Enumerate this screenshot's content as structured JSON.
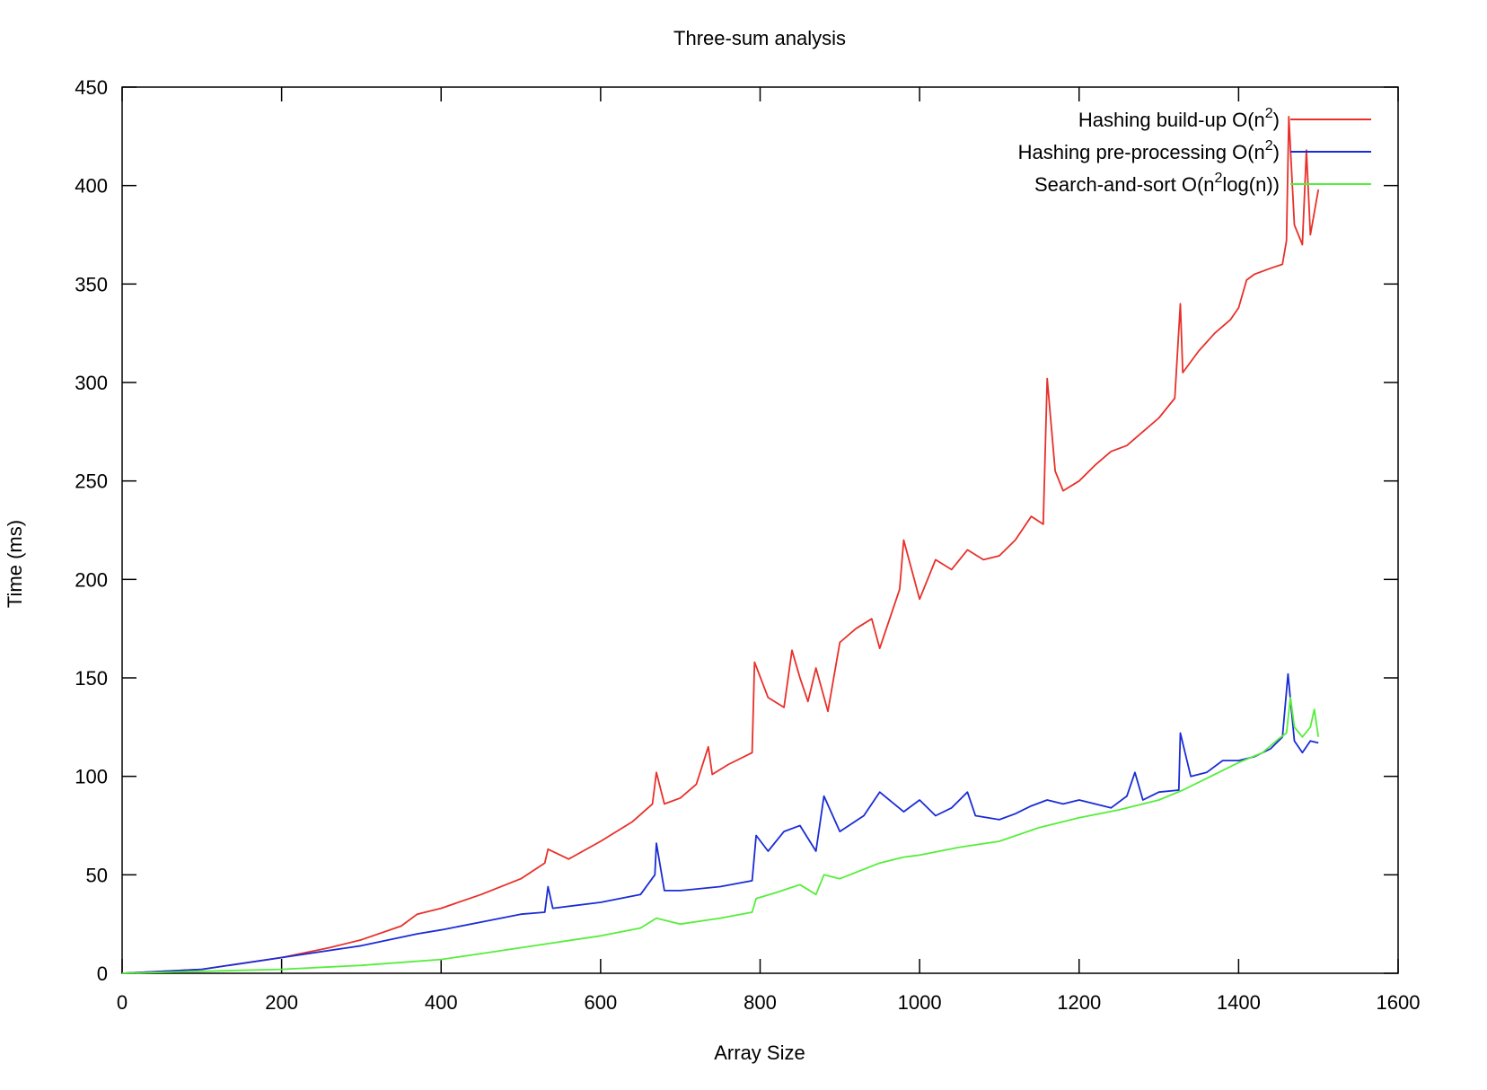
{
  "chart_data": {
    "type": "line",
    "title": "Three-sum analysis",
    "xlabel": "Array Size",
    "ylabel": "Time (ms)",
    "xlim": [
      0,
      1600
    ],
    "ylim": [
      0,
      450
    ],
    "xticks": [
      0,
      200,
      400,
      600,
      800,
      1000,
      1200,
      1400,
      1600
    ],
    "yticks": [
      0,
      50,
      100,
      150,
      200,
      250,
      300,
      350,
      400,
      450
    ],
    "grid": false,
    "legend_position": "top-right",
    "series": [
      {
        "name": "Hashing build-up O(n²)",
        "legend": {
          "base": "Hashing build-up O(n",
          "sup": "2",
          "tail": ")"
        },
        "color": "#e8302a",
        "points": [
          [
            0,
            0
          ],
          [
            100,
            2
          ],
          [
            200,
            8
          ],
          [
            260,
            13
          ],
          [
            300,
            17
          ],
          [
            350,
            24
          ],
          [
            370,
            30
          ],
          [
            400,
            33
          ],
          [
            450,
            40
          ],
          [
            500,
            48
          ],
          [
            530,
            56
          ],
          [
            534,
            63
          ],
          [
            560,
            58
          ],
          [
            600,
            67
          ],
          [
            640,
            77
          ],
          [
            665,
            86
          ],
          [
            670,
            102
          ],
          [
            680,
            86
          ],
          [
            700,
            89
          ],
          [
            720,
            96
          ],
          [
            735,
            115
          ],
          [
            740,
            101
          ],
          [
            760,
            106
          ],
          [
            790,
            112
          ],
          [
            793,
            158
          ],
          [
            810,
            140
          ],
          [
            830,
            135
          ],
          [
            840,
            164
          ],
          [
            850,
            150
          ],
          [
            860,
            138
          ],
          [
            870,
            155
          ],
          [
            885,
            133
          ],
          [
            900,
            168
          ],
          [
            920,
            175
          ],
          [
            940,
            180
          ],
          [
            950,
            165
          ],
          [
            975,
            195
          ],
          [
            980,
            220
          ],
          [
            1000,
            190
          ],
          [
            1020,
            210
          ],
          [
            1040,
            205
          ],
          [
            1060,
            215
          ],
          [
            1080,
            210
          ],
          [
            1100,
            212
          ],
          [
            1120,
            220
          ],
          [
            1140,
            232
          ],
          [
            1155,
            228
          ],
          [
            1160,
            302
          ],
          [
            1170,
            255
          ],
          [
            1180,
            245
          ],
          [
            1200,
            250
          ],
          [
            1220,
            258
          ],
          [
            1240,
            265
          ],
          [
            1260,
            268
          ],
          [
            1280,
            275
          ],
          [
            1300,
            282
          ],
          [
            1320,
            292
          ],
          [
            1327,
            340
          ],
          [
            1330,
            305
          ],
          [
            1350,
            316
          ],
          [
            1370,
            325
          ],
          [
            1390,
            332
          ],
          [
            1400,
            338
          ],
          [
            1410,
            352
          ],
          [
            1420,
            355
          ],
          [
            1440,
            358
          ],
          [
            1455,
            360
          ],
          [
            1460,
            372
          ],
          [
            1463,
            435
          ],
          [
            1470,
            380
          ],
          [
            1480,
            370
          ],
          [
            1485,
            418
          ],
          [
            1490,
            375
          ],
          [
            1500,
            398
          ]
        ]
      },
      {
        "name": "Hashing pre-processing O(n²)",
        "legend": {
          "base": "Hashing pre-processing O(n",
          "sup": "2",
          "tail": ")"
        },
        "color": "#1a2cd6",
        "points": [
          [
            0,
            0
          ],
          [
            100,
            2
          ],
          [
            200,
            8
          ],
          [
            300,
            14
          ],
          [
            370,
            20
          ],
          [
            400,
            22
          ],
          [
            450,
            26
          ],
          [
            500,
            30
          ],
          [
            530,
            31
          ],
          [
            534,
            44
          ],
          [
            540,
            33
          ],
          [
            600,
            36
          ],
          [
            650,
            40
          ],
          [
            668,
            50
          ],
          [
            670,
            66
          ],
          [
            680,
            42
          ],
          [
            700,
            42
          ],
          [
            750,
            44
          ],
          [
            790,
            47
          ],
          [
            795,
            70
          ],
          [
            810,
            62
          ],
          [
            830,
            72
          ],
          [
            850,
            75
          ],
          [
            870,
            62
          ],
          [
            880,
            90
          ],
          [
            900,
            72
          ],
          [
            930,
            80
          ],
          [
            950,
            92
          ],
          [
            980,
            82
          ],
          [
            1000,
            88
          ],
          [
            1020,
            80
          ],
          [
            1040,
            84
          ],
          [
            1060,
            92
          ],
          [
            1070,
            80
          ],
          [
            1100,
            78
          ],
          [
            1120,
            81
          ],
          [
            1140,
            85
          ],
          [
            1160,
            88
          ],
          [
            1180,
            86
          ],
          [
            1200,
            88
          ],
          [
            1220,
            86
          ],
          [
            1240,
            84
          ],
          [
            1260,
            90
          ],
          [
            1270,
            102
          ],
          [
            1280,
            88
          ],
          [
            1300,
            92
          ],
          [
            1325,
            93
          ],
          [
            1327,
            122
          ],
          [
            1340,
            100
          ],
          [
            1360,
            102
          ],
          [
            1380,
            108
          ],
          [
            1400,
            108
          ],
          [
            1420,
            110
          ],
          [
            1440,
            114
          ],
          [
            1455,
            120
          ],
          [
            1462,
            152
          ],
          [
            1470,
            118
          ],
          [
            1480,
            112
          ],
          [
            1490,
            118
          ],
          [
            1500,
            117
          ]
        ]
      },
      {
        "name": "Search-and-sort O(n²log(n))",
        "legend": {
          "base": "Search-and-sort O(n",
          "sup": "2",
          "tail": "log(n))"
        },
        "color": "#55ee3a",
        "points": [
          [
            0,
            0
          ],
          [
            100,
            1
          ],
          [
            200,
            2
          ],
          [
            300,
            4
          ],
          [
            400,
            7
          ],
          [
            450,
            10
          ],
          [
            500,
            13
          ],
          [
            550,
            16
          ],
          [
            600,
            19
          ],
          [
            650,
            23
          ],
          [
            670,
            28
          ],
          [
            700,
            25
          ],
          [
            750,
            28
          ],
          [
            790,
            31
          ],
          [
            795,
            38
          ],
          [
            820,
            41
          ],
          [
            850,
            45
          ],
          [
            870,
            40
          ],
          [
            880,
            50
          ],
          [
            900,
            48
          ],
          [
            950,
            56
          ],
          [
            980,
            59
          ],
          [
            1000,
            60
          ],
          [
            1050,
            64
          ],
          [
            1100,
            67
          ],
          [
            1150,
            74
          ],
          [
            1200,
            79
          ],
          [
            1250,
            83
          ],
          [
            1300,
            88
          ],
          [
            1330,
            93
          ],
          [
            1360,
            99
          ],
          [
            1400,
            107
          ],
          [
            1430,
            112
          ],
          [
            1450,
            119
          ],
          [
            1460,
            122
          ],
          [
            1465,
            140
          ],
          [
            1470,
            125
          ],
          [
            1480,
            120
          ],
          [
            1490,
            125
          ],
          [
            1495,
            134
          ],
          [
            1500,
            120
          ]
        ]
      }
    ]
  }
}
